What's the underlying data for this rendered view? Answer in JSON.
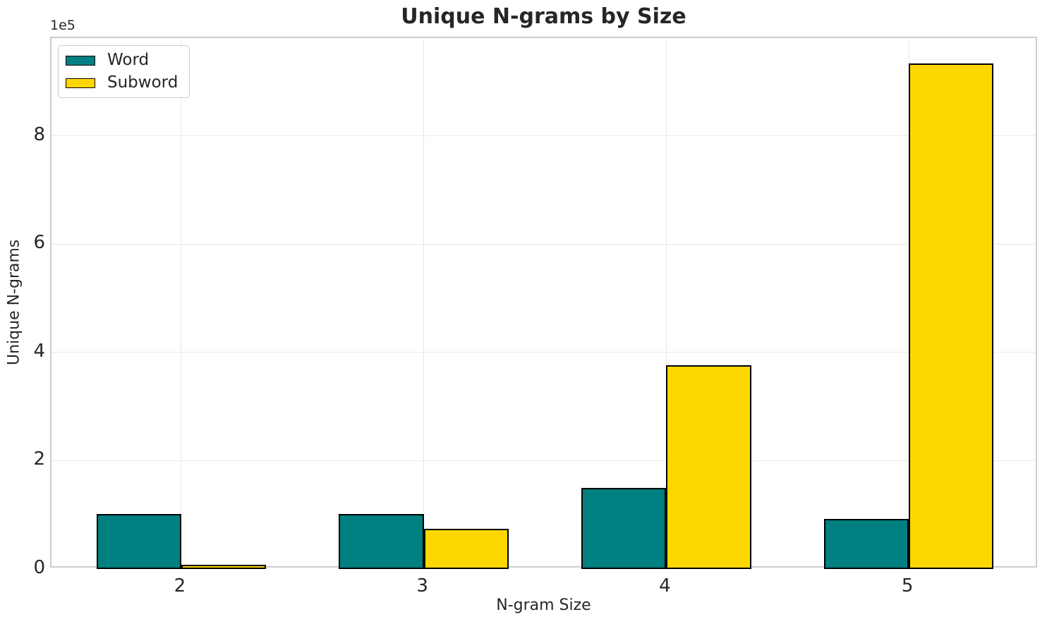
{
  "chart_data": {
    "type": "bar",
    "title": "Unique N-grams by Size",
    "xlabel": "N-gram Size",
    "ylabel": "Unique N-grams",
    "y_offset_text": "1e5",
    "categories": [
      2,
      3,
      4,
      5
    ],
    "xtick_labels": [
      "2",
      "3",
      "4",
      "5"
    ],
    "series": [
      {
        "name": "Word",
        "color": "#008080",
        "values": [
          102000,
          101000,
          150000,
          93000
        ]
      },
      {
        "name": "Subword",
        "color": "#FFD700",
        "values": [
          7500,
          74000,
          377000,
          934000
        ]
      }
    ],
    "bar_width": 0.35,
    "edge_color": "#000000",
    "xlim": [
      1.465,
      5.535
    ],
    "ylim": [
      0,
      980700
    ],
    "yticks": [
      0,
      200000,
      400000,
      600000,
      800000
    ],
    "ytick_labels": [
      "0",
      "2",
      "4",
      "6",
      "8"
    ],
    "grid": true,
    "legend_position": "upper left",
    "colors": {
      "background": "#ffffff",
      "grid": "#e8e8e8",
      "spine": "#cccccc",
      "text": "#262626"
    }
  }
}
